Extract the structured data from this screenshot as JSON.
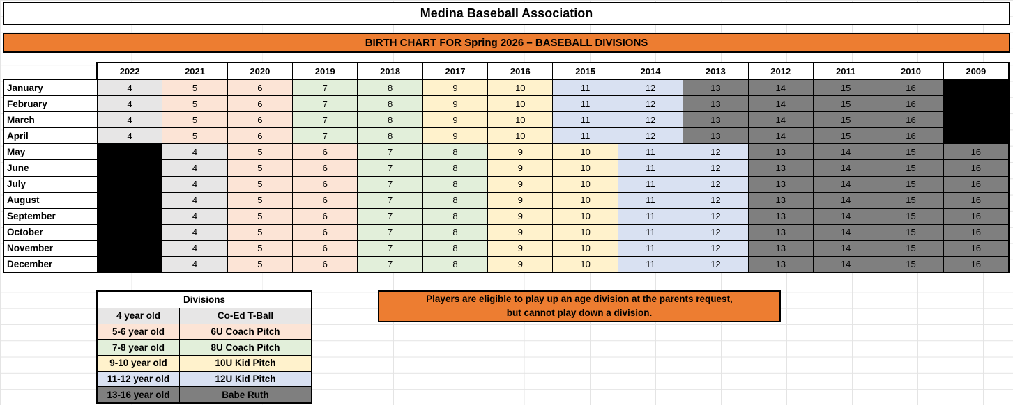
{
  "title": "Medina Baseball Association",
  "banner": "BIRTH CHART FOR Spring 2026 – BASEBALL DIVISIONS",
  "note": {
    "line1": "Players are eligible to play up an age division at the parents request,",
    "line2": "but cannot play down a division."
  },
  "colors": {
    "orange": "#ED7D31",
    "gridline": "#E4E4E4",
    "divisions": {
      "tball": "#E7E6E6",
      "6u": "#FCE4D6",
      "8u": "#E2EFDA",
      "10u": "#FFF2CC",
      "12u": "#D9E1F2",
      "ruth": "#7F7F7F",
      "blank": "#000000"
    }
  },
  "chart_data": {
    "type": "table",
    "years": [
      "2022",
      "2021",
      "2020",
      "2019",
      "2018",
      "2017",
      "2016",
      "2015",
      "2014",
      "2013",
      "2012",
      "2011",
      "2010",
      "2009"
    ],
    "rows": [
      {
        "month": "January",
        "cells": [
          [
            "4",
            "tball"
          ],
          [
            "5",
            "6u"
          ],
          [
            "6",
            "6u"
          ],
          [
            "7",
            "8u"
          ],
          [
            "8",
            "8u"
          ],
          [
            "9",
            "10u"
          ],
          [
            "10",
            "10u"
          ],
          [
            "11",
            "12u"
          ],
          [
            "12",
            "12u"
          ],
          [
            "13",
            "ruth"
          ],
          [
            "14",
            "ruth"
          ],
          [
            "15",
            "ruth"
          ],
          [
            "16",
            "ruth"
          ],
          [
            "",
            "blank"
          ]
        ]
      },
      {
        "month": "February",
        "cells": [
          [
            "4",
            "tball"
          ],
          [
            "5",
            "6u"
          ],
          [
            "6",
            "6u"
          ],
          [
            "7",
            "8u"
          ],
          [
            "8",
            "8u"
          ],
          [
            "9",
            "10u"
          ],
          [
            "10",
            "10u"
          ],
          [
            "11",
            "12u"
          ],
          [
            "12",
            "12u"
          ],
          [
            "13",
            "ruth"
          ],
          [
            "14",
            "ruth"
          ],
          [
            "15",
            "ruth"
          ],
          [
            "16",
            "ruth"
          ],
          [
            "",
            "blank"
          ]
        ]
      },
      {
        "month": "March",
        "cells": [
          [
            "4",
            "tball"
          ],
          [
            "5",
            "6u"
          ],
          [
            "6",
            "6u"
          ],
          [
            "7",
            "8u"
          ],
          [
            "8",
            "8u"
          ],
          [
            "9",
            "10u"
          ],
          [
            "10",
            "10u"
          ],
          [
            "11",
            "12u"
          ],
          [
            "12",
            "12u"
          ],
          [
            "13",
            "ruth"
          ],
          [
            "14",
            "ruth"
          ],
          [
            "15",
            "ruth"
          ],
          [
            "16",
            "ruth"
          ],
          [
            "",
            "blank"
          ]
        ]
      },
      {
        "month": "April",
        "cells": [
          [
            "4",
            "tball"
          ],
          [
            "5",
            "6u"
          ],
          [
            "6",
            "6u"
          ],
          [
            "7",
            "8u"
          ],
          [
            "8",
            "8u"
          ],
          [
            "9",
            "10u"
          ],
          [
            "10",
            "10u"
          ],
          [
            "11",
            "12u"
          ],
          [
            "12",
            "12u"
          ],
          [
            "13",
            "ruth"
          ],
          [
            "14",
            "ruth"
          ],
          [
            "15",
            "ruth"
          ],
          [
            "16",
            "ruth"
          ],
          [
            "",
            "blank"
          ]
        ]
      },
      {
        "month": "May",
        "cells": [
          [
            "",
            "blank"
          ],
          [
            "4",
            "tball"
          ],
          [
            "5",
            "6u"
          ],
          [
            "6",
            "6u"
          ],
          [
            "7",
            "8u"
          ],
          [
            "8",
            "8u"
          ],
          [
            "9",
            "10u"
          ],
          [
            "10",
            "10u"
          ],
          [
            "11",
            "12u"
          ],
          [
            "12",
            "12u"
          ],
          [
            "13",
            "ruth"
          ],
          [
            "14",
            "ruth"
          ],
          [
            "15",
            "ruth"
          ],
          [
            "16",
            "ruth"
          ]
        ]
      },
      {
        "month": "June",
        "cells": [
          [
            "",
            "blank"
          ],
          [
            "4",
            "tball"
          ],
          [
            "5",
            "6u"
          ],
          [
            "6",
            "6u"
          ],
          [
            "7",
            "8u"
          ],
          [
            "8",
            "8u"
          ],
          [
            "9",
            "10u"
          ],
          [
            "10",
            "10u"
          ],
          [
            "11",
            "12u"
          ],
          [
            "12",
            "12u"
          ],
          [
            "13",
            "ruth"
          ],
          [
            "14",
            "ruth"
          ],
          [
            "15",
            "ruth"
          ],
          [
            "16",
            "ruth"
          ]
        ]
      },
      {
        "month": "July",
        "cells": [
          [
            "",
            "blank"
          ],
          [
            "4",
            "tball"
          ],
          [
            "5",
            "6u"
          ],
          [
            "6",
            "6u"
          ],
          [
            "7",
            "8u"
          ],
          [
            "8",
            "8u"
          ],
          [
            "9",
            "10u"
          ],
          [
            "10",
            "10u"
          ],
          [
            "11",
            "12u"
          ],
          [
            "12",
            "12u"
          ],
          [
            "13",
            "ruth"
          ],
          [
            "14",
            "ruth"
          ],
          [
            "15",
            "ruth"
          ],
          [
            "16",
            "ruth"
          ]
        ]
      },
      {
        "month": "August",
        "cells": [
          [
            "",
            "blank"
          ],
          [
            "4",
            "tball"
          ],
          [
            "5",
            "6u"
          ],
          [
            "6",
            "6u"
          ],
          [
            "7",
            "8u"
          ],
          [
            "8",
            "8u"
          ],
          [
            "9",
            "10u"
          ],
          [
            "10",
            "10u"
          ],
          [
            "11",
            "12u"
          ],
          [
            "12",
            "12u"
          ],
          [
            "13",
            "ruth"
          ],
          [
            "14",
            "ruth"
          ],
          [
            "15",
            "ruth"
          ],
          [
            "16",
            "ruth"
          ]
        ]
      },
      {
        "month": "September",
        "cells": [
          [
            "",
            "blank"
          ],
          [
            "4",
            "tball"
          ],
          [
            "5",
            "6u"
          ],
          [
            "6",
            "6u"
          ],
          [
            "7",
            "8u"
          ],
          [
            "8",
            "8u"
          ],
          [
            "9",
            "10u"
          ],
          [
            "10",
            "10u"
          ],
          [
            "11",
            "12u"
          ],
          [
            "12",
            "12u"
          ],
          [
            "13",
            "ruth"
          ],
          [
            "14",
            "ruth"
          ],
          [
            "15",
            "ruth"
          ],
          [
            "16",
            "ruth"
          ]
        ]
      },
      {
        "month": "October",
        "cells": [
          [
            "",
            "blank"
          ],
          [
            "4",
            "tball"
          ],
          [
            "5",
            "6u"
          ],
          [
            "6",
            "6u"
          ],
          [
            "7",
            "8u"
          ],
          [
            "8",
            "8u"
          ],
          [
            "9",
            "10u"
          ],
          [
            "10",
            "10u"
          ],
          [
            "11",
            "12u"
          ],
          [
            "12",
            "12u"
          ],
          [
            "13",
            "ruth"
          ],
          [
            "14",
            "ruth"
          ],
          [
            "15",
            "ruth"
          ],
          [
            "16",
            "ruth"
          ]
        ]
      },
      {
        "month": "November",
        "cells": [
          [
            "",
            "blank"
          ],
          [
            "4",
            "tball"
          ],
          [
            "5",
            "6u"
          ],
          [
            "6",
            "6u"
          ],
          [
            "7",
            "8u"
          ],
          [
            "8",
            "8u"
          ],
          [
            "9",
            "10u"
          ],
          [
            "10",
            "10u"
          ],
          [
            "11",
            "12u"
          ],
          [
            "12",
            "12u"
          ],
          [
            "13",
            "ruth"
          ],
          [
            "14",
            "ruth"
          ],
          [
            "15",
            "ruth"
          ],
          [
            "16",
            "ruth"
          ]
        ]
      },
      {
        "month": "December",
        "cells": [
          [
            "",
            "blank"
          ],
          [
            "4",
            "tball"
          ],
          [
            "5",
            "6u"
          ],
          [
            "6",
            "6u"
          ],
          [
            "7",
            "8u"
          ],
          [
            "8",
            "8u"
          ],
          [
            "9",
            "10u"
          ],
          [
            "10",
            "10u"
          ],
          [
            "11",
            "12u"
          ],
          [
            "12",
            "12u"
          ],
          [
            "13",
            "ruth"
          ],
          [
            "14",
            "ruth"
          ],
          [
            "15",
            "ruth"
          ],
          [
            "16",
            "ruth"
          ]
        ]
      }
    ]
  },
  "legend": {
    "header": "Divisions",
    "rows": [
      {
        "age": "4 year old",
        "division": "Co-Ed T-Ball",
        "key": "tball"
      },
      {
        "age": "5-6 year old",
        "division": "6U Coach Pitch",
        "key": "6u"
      },
      {
        "age": "7-8 year old",
        "division": "8U Coach Pitch",
        "key": "8u"
      },
      {
        "age": "9-10 year old",
        "division": "10U Kid Pitch",
        "key": "10u"
      },
      {
        "age": "11-12 year old",
        "division": "12U Kid Pitch",
        "key": "12u"
      },
      {
        "age": "13-16 year old",
        "division": "Babe Ruth",
        "key": "ruth"
      }
    ]
  }
}
